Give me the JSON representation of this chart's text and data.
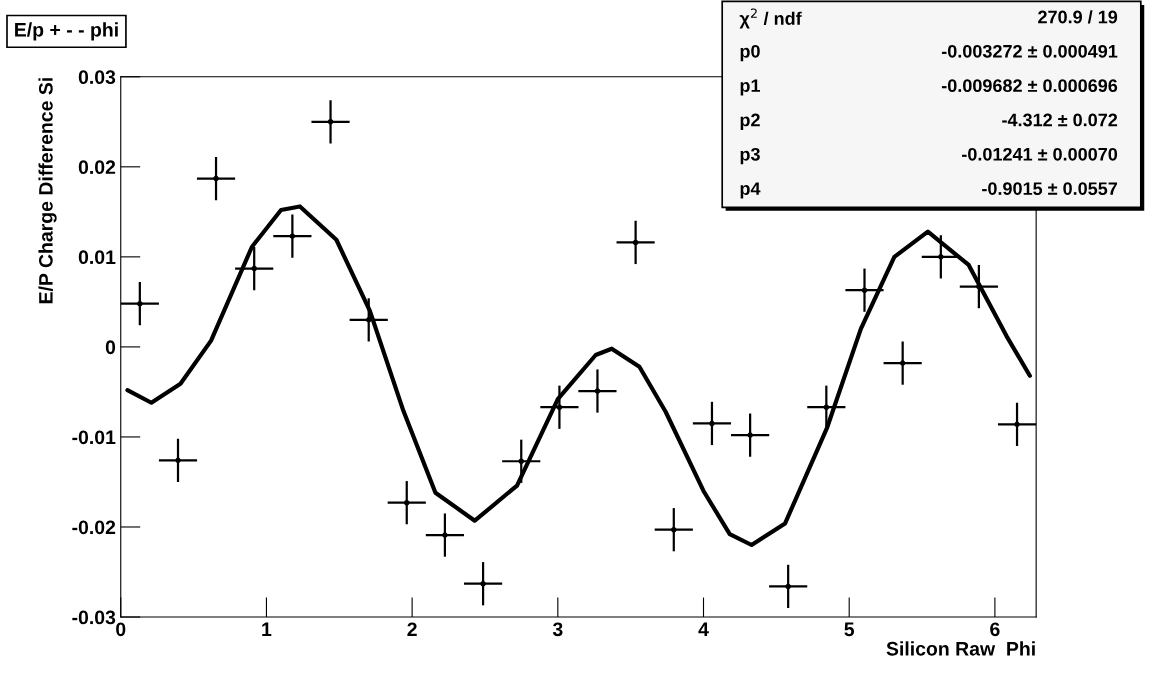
{
  "chart_data": {
    "type": "scatter",
    "title": "E/p + - - phi",
    "xlabel": "Silicon Raw  Phi",
    "ylabel": "E/P Charge Difference Si",
    "xlim": [
      0,
      6.2832
    ],
    "xticks": [
      0,
      1,
      2,
      3,
      4,
      5,
      6
    ],
    "ylim": [
      -0.03,
      0.03
    ],
    "yticks": [
      -0.03,
      -0.02,
      -0.01,
      0,
      0.01,
      0.02,
      0.03
    ],
    "x": [
      0.131,
      0.393,
      0.654,
      0.916,
      1.178,
      1.44,
      1.702,
      1.963,
      2.225,
      2.487,
      2.749,
      3.011,
      3.272,
      3.534,
      3.796,
      4.058,
      4.32,
      4.581,
      4.843,
      5.105,
      5.367,
      5.629,
      5.89,
      6.152
    ],
    "grid": false,
    "legend": false,
    "series": [
      {
        "type": "scatter",
        "color": "#000000",
        "marker": "circle",
        "values": [
          0.0048,
          -0.0126,
          0.0187,
          0.0087,
          0.0123,
          0.025,
          0.003,
          -0.0173,
          -0.0209,
          -0.0263,
          -0.0127,
          -0.0067,
          -0.0049,
          0.0116,
          -0.0203,
          -0.0085,
          -0.0098,
          -0.0266,
          -0.0067,
          0.0063,
          -0.0018,
          0.01,
          0.0067,
          -0.0086
        ],
        "errors": [
          0.0024,
          0.0024,
          0.0024,
          0.0024,
          0.0024,
          0.0024,
          0.0024,
          0.0024,
          0.0024,
          0.0024,
          0.0024,
          0.0024,
          0.0024,
          0.0024,
          0.0024,
          0.0024,
          0.0024,
          0.0024,
          0.0024,
          0.0024,
          0.0024,
          0.0024,
          0.0024,
          0.0024
        ],
        "xerrors": [
          0.131,
          0.131,
          0.131,
          0.131,
          0.131,
          0.131,
          0.131,
          0.131,
          0.131,
          0.131,
          0.131,
          0.131,
          0.131,
          0.131,
          0.131,
          0.131,
          0.131,
          0.131,
          0.131,
          0.131,
          0.131,
          0.131,
          0.131,
          0.131
        ]
      },
      {
        "type": "line",
        "color": "#000000",
        "line_style": "solid",
        "marker": "none",
        "x": [
          0.046,
          0.21,
          0.41,
          0.62,
          0.9,
          1.1,
          1.23,
          1.48,
          1.71,
          1.94,
          2.16,
          2.43,
          2.72,
          3.0,
          3.26,
          3.37,
          3.56,
          3.74,
          4.0,
          4.18,
          4.33,
          4.56,
          4.85,
          5.08,
          5.31,
          5.54,
          5.82,
          6.08,
          6.24
        ],
        "values": [
          -0.0048,
          -0.0062,
          -0.0041,
          0.0007,
          0.0111,
          0.0152,
          0.0156,
          0.0119,
          0.004,
          -0.0071,
          -0.0162,
          -0.0193,
          -0.0154,
          -0.0058,
          -0.0009,
          -0.0002,
          -0.0022,
          -0.0072,
          -0.016,
          -0.0208,
          -0.022,
          -0.0196,
          -0.0089,
          0.002,
          0.01,
          0.0128,
          0.0091,
          0.0012,
          -0.0032
        ]
      }
    ],
    "annotations": [
      "χ$^{2}$ / ndf",
      "270.9 / 19",
      "p0",
      "-0.003272 ± 0.000491",
      "p1",
      "-0.009682 ± 0.000696",
      "p2",
      "-4.312 ± 0.072",
      "p3",
      "-0.01241 ± 0.00070",
      "p4",
      "-0.9015 ± 0.0557"
    ]
  }
}
